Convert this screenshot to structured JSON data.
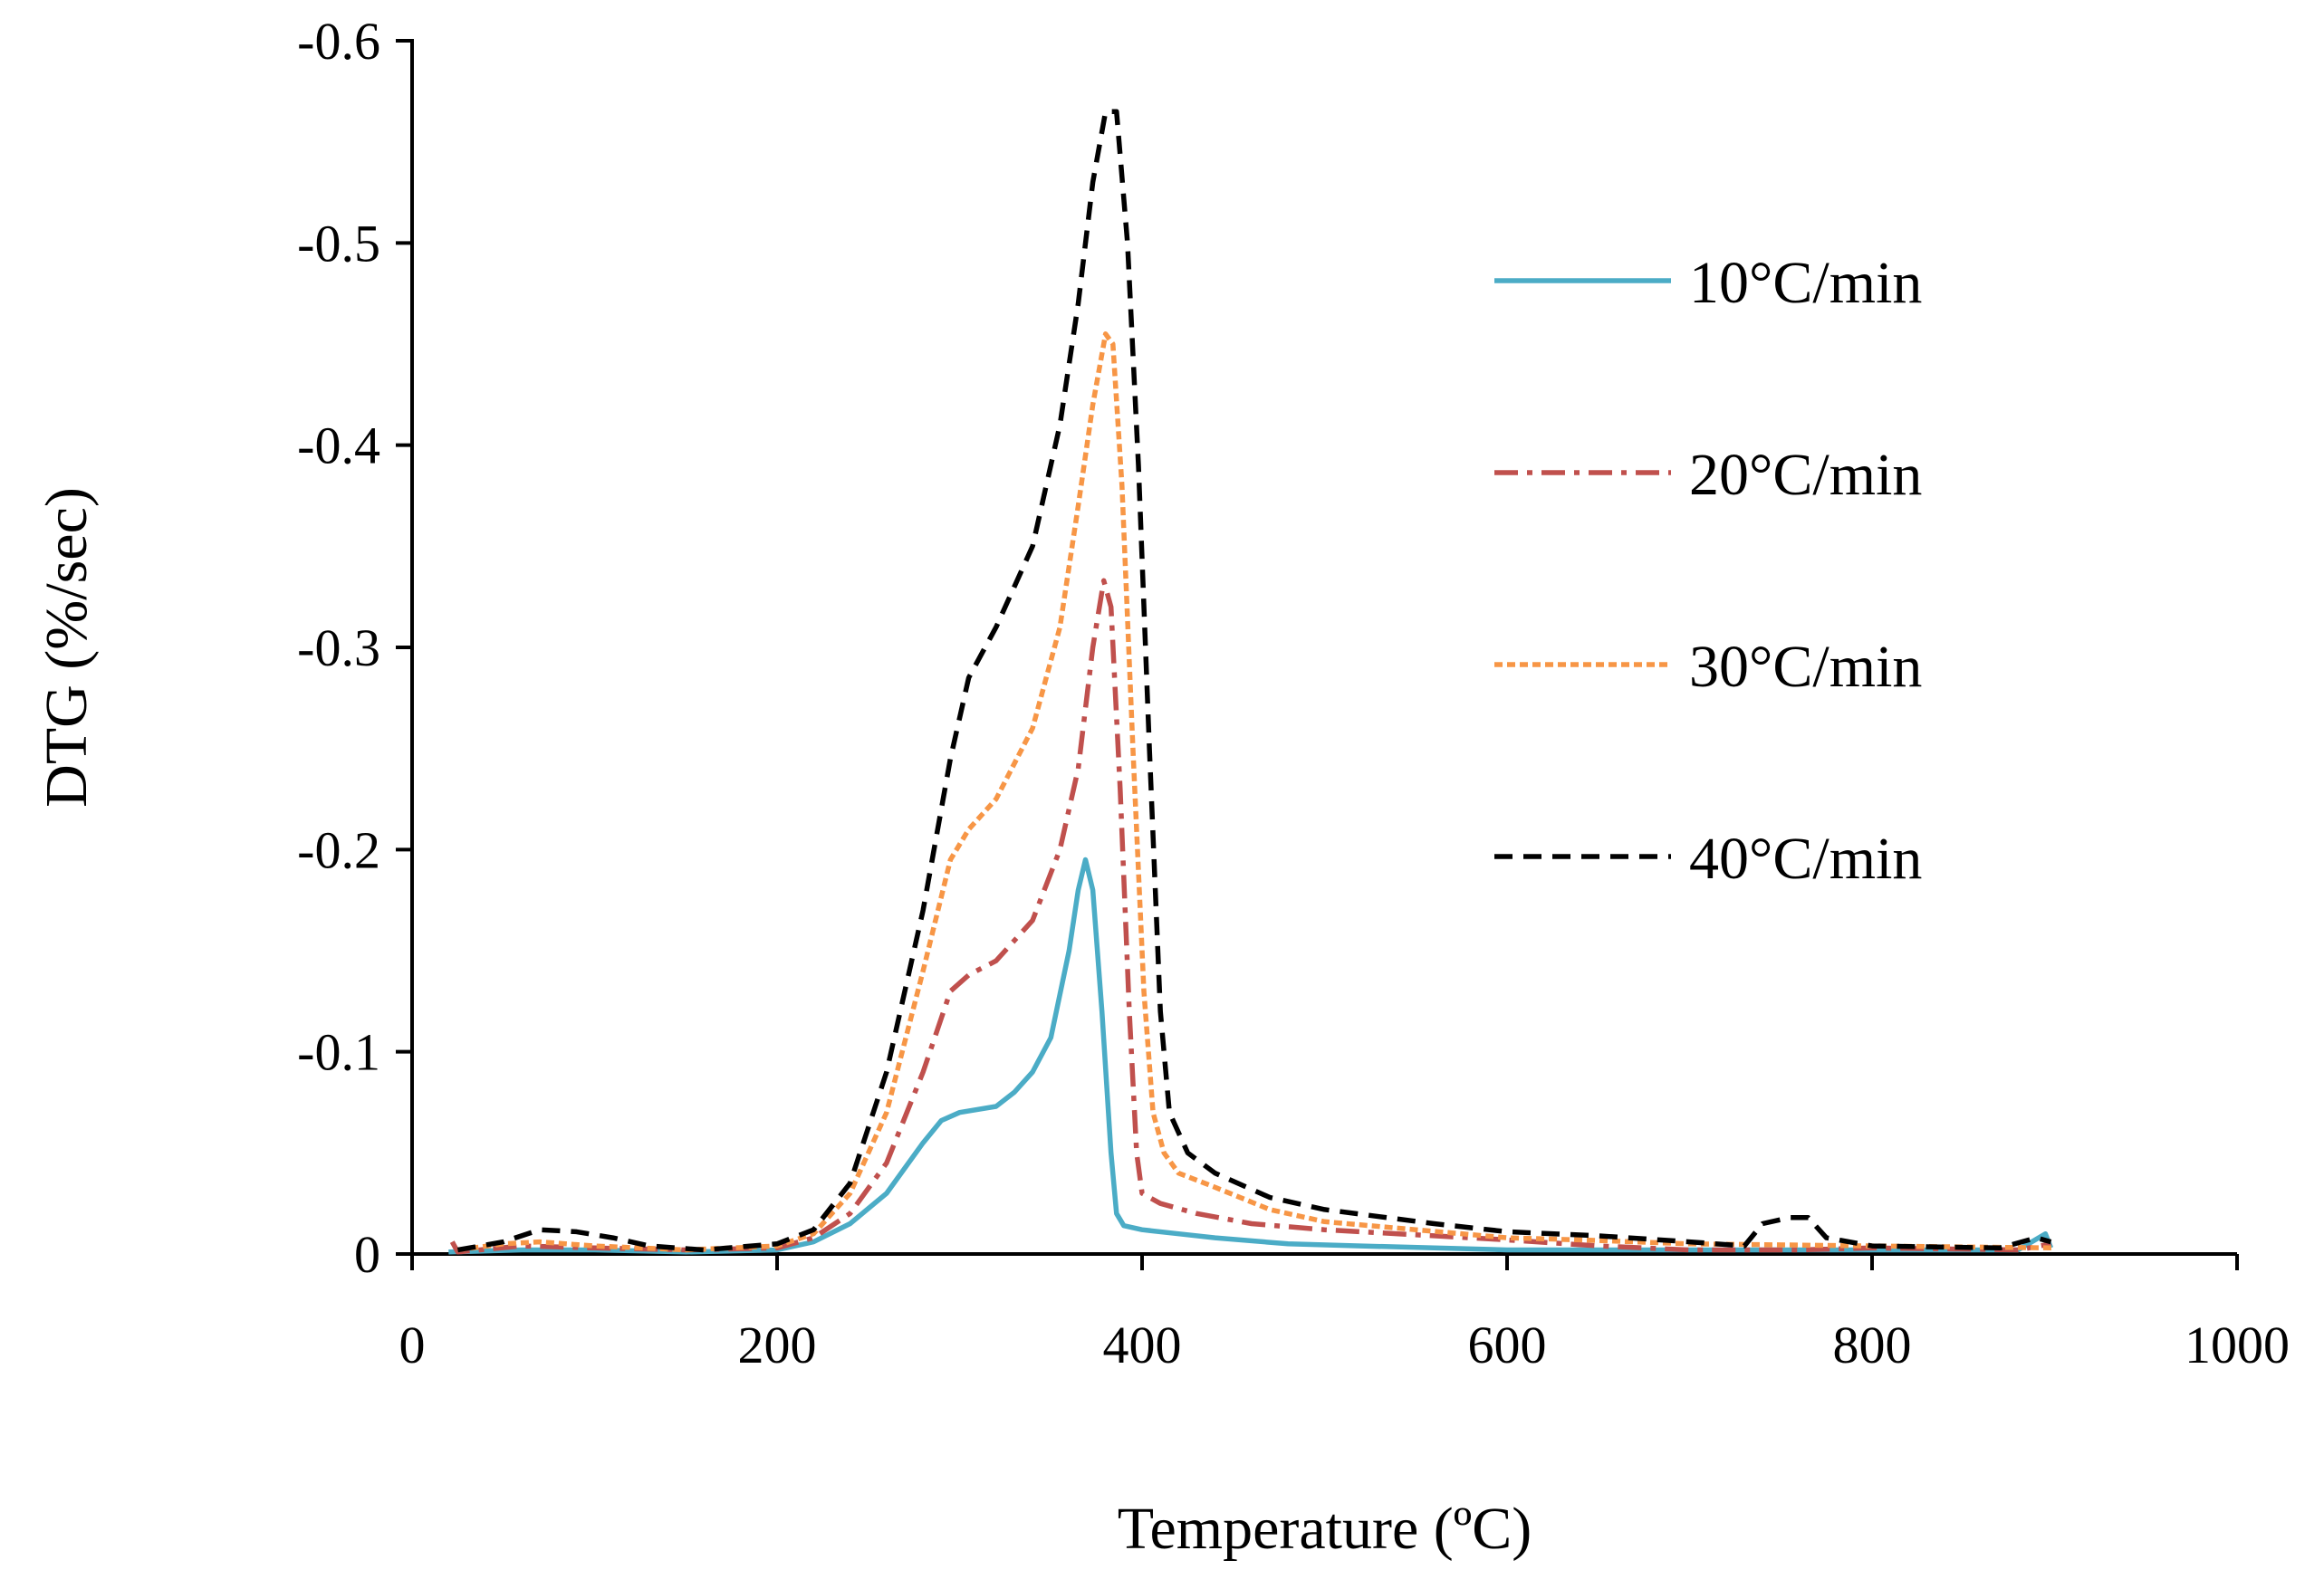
{
  "chart_data": {
    "type": "line",
    "title": "",
    "xlabel": "Temperature (ºC)",
    "ylabel": "DTG (%/sec)",
    "xlim": [
      0,
      1000
    ],
    "ylim": [
      0,
      -0.6
    ],
    "y_inverted": true,
    "grid": false,
    "legend_position": "right",
    "x_ticks": [
      {
        "value": 0,
        "label": "0"
      },
      {
        "value": 200,
        "label": "200"
      },
      {
        "value": 400,
        "label": "400"
      },
      {
        "value": 600,
        "label": "600"
      },
      {
        "value": 800,
        "label": "800"
      },
      {
        "value": 1000,
        "label": "1000"
      }
    ],
    "y_ticks": [
      {
        "value": 0,
        "label": "0"
      },
      {
        "value": -0.1,
        "label": "-0.1"
      },
      {
        "value": -0.2,
        "label": "-0.2"
      },
      {
        "value": -0.3,
        "label": "-0.3"
      },
      {
        "value": -0.4,
        "label": "-0.4"
      },
      {
        "value": -0.5,
        "label": "-0.5"
      },
      {
        "value": -0.6,
        "label": "-0.6"
      }
    ],
    "series": [
      {
        "name": "10°C/min",
        "color": "#4BACC6",
        "style": "solid",
        "points": [
          [
            20,
            -0.001
          ],
          [
            60,
            -0.002
          ],
          [
            100,
            -0.002
          ],
          [
            150,
            -0.001
          ],
          [
            200,
            -0.002
          ],
          [
            220,
            -0.006
          ],
          [
            240,
            -0.015
          ],
          [
            260,
            -0.03
          ],
          [
            280,
            -0.055
          ],
          [
            290,
            -0.066
          ],
          [
            300,
            -0.07
          ],
          [
            320,
            -0.073
          ],
          [
            330,
            -0.08
          ],
          [
            340,
            -0.09
          ],
          [
            350,
            -0.107
          ],
          [
            360,
            -0.15
          ],
          [
            365,
            -0.18
          ],
          [
            369,
            -0.195
          ],
          [
            373,
            -0.18
          ],
          [
            378,
            -0.12
          ],
          [
            383,
            -0.05
          ],
          [
            386,
            -0.02
          ],
          [
            390,
            -0.014
          ],
          [
            400,
            -0.012
          ],
          [
            420,
            -0.01
          ],
          [
            440,
            -0.008
          ],
          [
            480,
            -0.005
          ],
          [
            520,
            -0.004
          ],
          [
            600,
            -0.002
          ],
          [
            700,
            -0.002
          ],
          [
            800,
            -0.002
          ],
          [
            880,
            -0.002
          ],
          [
            895,
            -0.01
          ],
          [
            898,
            -0.003
          ]
        ]
      },
      {
        "name": "20°C/min",
        "color": "#C0504D",
        "style": "dashdot",
        "points": [
          [
            22,
            -0.006
          ],
          [
            25,
            -0.001
          ],
          [
            60,
            -0.004
          ],
          [
            100,
            -0.003
          ],
          [
            150,
            -0.002
          ],
          [
            200,
            -0.003
          ],
          [
            220,
            -0.008
          ],
          [
            240,
            -0.02
          ],
          [
            260,
            -0.045
          ],
          [
            280,
            -0.09
          ],
          [
            295,
            -0.13
          ],
          [
            305,
            -0.138
          ],
          [
            320,
            -0.145
          ],
          [
            340,
            -0.165
          ],
          [
            355,
            -0.2
          ],
          [
            365,
            -0.24
          ],
          [
            373,
            -0.3
          ],
          [
            379,
            -0.333
          ],
          [
            383,
            -0.32
          ],
          [
            388,
            -0.23
          ],
          [
            393,
            -0.12
          ],
          [
            397,
            -0.05
          ],
          [
            400,
            -0.03
          ],
          [
            410,
            -0.025
          ],
          [
            430,
            -0.02
          ],
          [
            460,
            -0.015
          ],
          [
            500,
            -0.012
          ],
          [
            560,
            -0.009
          ],
          [
            600,
            -0.007
          ],
          [
            650,
            -0.004
          ],
          [
            700,
            -0.002
          ],
          [
            760,
            -0.002
          ],
          [
            800,
            -0.003
          ],
          [
            880,
            -0.002
          ],
          [
            898,
            -0.005
          ]
        ]
      },
      {
        "name": "30°C/min",
        "color": "#F79646",
        "style": "dotted",
        "points": [
          [
            25,
            -0.002
          ],
          [
            50,
            -0.005
          ],
          [
            70,
            -0.006
          ],
          [
            100,
            -0.004
          ],
          [
            150,
            -0.002
          ],
          [
            200,
            -0.004
          ],
          [
            220,
            -0.01
          ],
          [
            240,
            -0.03
          ],
          [
            260,
            -0.07
          ],
          [
            280,
            -0.14
          ],
          [
            295,
            -0.195
          ],
          [
            305,
            -0.21
          ],
          [
            320,
            -0.225
          ],
          [
            340,
            -0.26
          ],
          [
            355,
            -0.31
          ],
          [
            365,
            -0.37
          ],
          [
            373,
            -0.42
          ],
          [
            380,
            -0.455
          ],
          [
            384,
            -0.45
          ],
          [
            389,
            -0.38
          ],
          [
            395,
            -0.25
          ],
          [
            401,
            -0.13
          ],
          [
            406,
            -0.07
          ],
          [
            412,
            -0.05
          ],
          [
            420,
            -0.04
          ],
          [
            440,
            -0.033
          ],
          [
            470,
            -0.022
          ],
          [
            500,
            -0.016
          ],
          [
            550,
            -0.012
          ],
          [
            600,
            -0.008
          ],
          [
            640,
            -0.007
          ],
          [
            700,
            -0.005
          ],
          [
            800,
            -0.004
          ],
          [
            900,
            -0.003
          ]
        ]
      },
      {
        "name": "40°C/min",
        "color": "#000000",
        "style": "dashed",
        "points": [
          [
            25,
            -0.002
          ],
          [
            50,
            -0.006
          ],
          [
            70,
            -0.012
          ],
          [
            90,
            -0.011
          ],
          [
            110,
            -0.008
          ],
          [
            130,
            -0.004
          ],
          [
            160,
            -0.002
          ],
          [
            200,
            -0.005
          ],
          [
            220,
            -0.012
          ],
          [
            240,
            -0.035
          ],
          [
            260,
            -0.09
          ],
          [
            280,
            -0.17
          ],
          [
            295,
            -0.245
          ],
          [
            305,
            -0.285
          ],
          [
            320,
            -0.31
          ],
          [
            340,
            -0.35
          ],
          [
            355,
            -0.41
          ],
          [
            365,
            -0.47
          ],
          [
            373,
            -0.53
          ],
          [
            380,
            -0.565
          ],
          [
            386,
            -0.565
          ],
          [
            392,
            -0.5
          ],
          [
            398,
            -0.39
          ],
          [
            404,
            -0.25
          ],
          [
            410,
            -0.12
          ],
          [
            415,
            -0.07
          ],
          [
            425,
            -0.05
          ],
          [
            440,
            -0.04
          ],
          [
            470,
            -0.028
          ],
          [
            500,
            -0.022
          ],
          [
            560,
            -0.015
          ],
          [
            600,
            -0.011
          ],
          [
            650,
            -0.009
          ],
          [
            700,
            -0.006
          ],
          [
            730,
            -0.004
          ],
          [
            740,
            -0.015
          ],
          [
            755,
            -0.018
          ],
          [
            765,
            -0.018
          ],
          [
            775,
            -0.008
          ],
          [
            800,
            -0.004
          ],
          [
            870,
            -0.003
          ],
          [
            890,
            -0.008
          ],
          [
            898,
            -0.006
          ]
        ]
      }
    ]
  }
}
